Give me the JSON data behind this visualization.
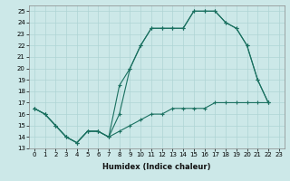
{
  "bg_color": "#cce8e8",
  "grid_color": "#afd4d4",
  "line_color": "#1a7060",
  "xlabel": "Humidex (Indice chaleur)",
  "xlim": [
    -0.5,
    23.5
  ],
  "ylim": [
    13,
    25.5
  ],
  "xticks": [
    0,
    1,
    2,
    3,
    4,
    5,
    6,
    7,
    8,
    9,
    10,
    11,
    12,
    13,
    14,
    15,
    16,
    17,
    18,
    19,
    20,
    21,
    22,
    23
  ],
  "yticks": [
    13,
    14,
    15,
    16,
    17,
    18,
    19,
    20,
    21,
    22,
    23,
    24,
    25
  ],
  "line1_x": [
    0,
    1,
    2,
    3,
    4,
    5,
    6,
    7,
    8,
    9,
    10,
    11,
    12,
    13,
    14,
    15,
    16,
    17,
    18,
    19,
    20,
    21,
    22
  ],
  "line1_y": [
    16.5,
    16.0,
    15.0,
    14.0,
    13.5,
    14.5,
    14.5,
    14.0,
    16.0,
    20.0,
    22.0,
    23.5,
    23.5,
    23.5,
    23.5,
    25.0,
    25.0,
    25.0,
    24.0,
    23.5,
    22.0,
    19.0,
    17.0
  ],
  "line2_x": [
    0,
    1,
    2,
    3,
    4,
    5,
    6,
    7,
    8,
    9,
    10,
    11,
    12,
    13,
    14,
    15,
    16,
    17,
    18,
    19,
    20,
    21,
    22
  ],
  "line2_y": [
    16.5,
    16.0,
    15.0,
    14.0,
    13.5,
    14.5,
    14.5,
    14.0,
    18.5,
    20.0,
    22.0,
    23.5,
    23.5,
    23.5,
    23.5,
    25.0,
    25.0,
    25.0,
    24.0,
    23.5,
    22.0,
    19.0,
    17.0
  ],
  "line3_x": [
    0,
    1,
    2,
    3,
    4,
    5,
    6,
    7,
    8,
    9,
    10,
    11,
    12,
    13,
    14,
    15,
    16,
    17,
    18,
    19,
    20,
    21,
    22
  ],
  "line3_y": [
    16.5,
    16.0,
    15.0,
    14.0,
    13.5,
    14.5,
    14.5,
    14.0,
    14.5,
    15.0,
    15.5,
    16.0,
    16.0,
    16.5,
    16.5,
    16.5,
    16.5,
    17.0,
    17.0,
    17.0,
    17.0,
    17.0,
    17.0
  ]
}
